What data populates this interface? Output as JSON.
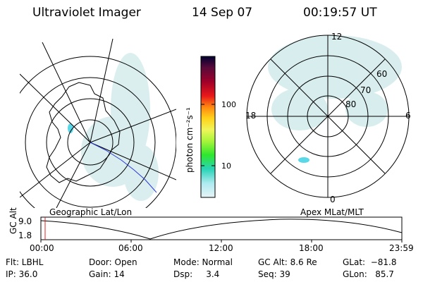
{
  "header": {
    "instrument": "Ultraviolet Imager",
    "date": "14 Sep 07",
    "time": "00:19:57 UT"
  },
  "left_map": {
    "caption": "Geographic Lat/Lon"
  },
  "right_map": {
    "caption": "Apex MLat/MLT",
    "mlt_labels": {
      "top": "12",
      "left": "18",
      "right": "6",
      "bottom": "0"
    },
    "lat_labels": [
      "60",
      "70",
      "80"
    ]
  },
  "colorbar": {
    "unit_label": "photon cm⁻²s⁻¹",
    "ticks": [
      "100",
      "10"
    ],
    "colors": [
      "#000030",
      "#5a0a3a",
      "#a0002a",
      "#e8181a",
      "#ff8a10",
      "#ffd21a",
      "#f0f55a",
      "#a8f53a",
      "#2ee62e",
      "#2ad4b8",
      "#aeeaf0",
      "#e6f4f6"
    ]
  },
  "altitude_plot": {
    "ylabel": "GC Alt",
    "yticks": [
      "9.0",
      "1.8"
    ],
    "xticks": [
      "00:00",
      "06:00",
      "12:00",
      "18:00",
      "23:59"
    ]
  },
  "params": {
    "filter": "Flt: LBHL",
    "ip": "IP: 36.0",
    "door": "Door: Open",
    "gain": "Gain: 14",
    "mode": "Mode: Normal",
    "dsp": "Dsp:     3.4",
    "gc_alt": "GC Alt: 8.6 Re",
    "seq": "Seq: 39",
    "glat": "GLat:  −81.8",
    "glon": "GLon:   85.7"
  }
}
